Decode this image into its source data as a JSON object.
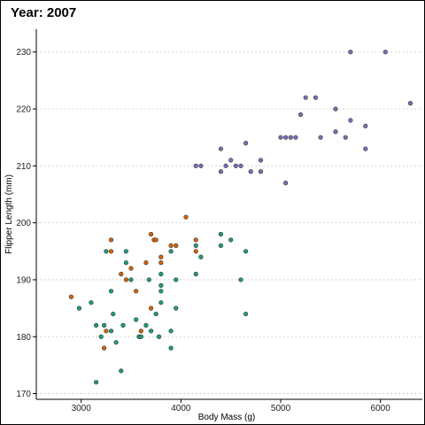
{
  "chart_data": {
    "type": "scatter",
    "title": "Year: 2007",
    "xlabel": "Body Mass (g)",
    "ylabel": "Flipper Length (mm)",
    "xlim": [
      2550,
      6420
    ],
    "ylim": [
      169,
      234
    ],
    "xticks": [
      3000,
      4000,
      5000,
      6000
    ],
    "yticks": [
      170,
      180,
      190,
      200,
      210,
      220,
      230
    ],
    "grid": "horizontal-dotted",
    "legend": "none",
    "series": [
      {
        "color": "#1b9e77",
        "points": [
          [
            2980,
            185
          ],
          [
            3100,
            186
          ],
          [
            3150,
            182
          ],
          [
            3200,
            180
          ],
          [
            3230,
            182
          ],
          [
            3250,
            195
          ],
          [
            3300,
            181
          ],
          [
            3300,
            188
          ],
          [
            3320,
            184
          ],
          [
            3350,
            179
          ],
          [
            3150,
            172
          ],
          [
            3400,
            174
          ],
          [
            3420,
            182
          ],
          [
            3450,
            195
          ],
          [
            3450,
            193
          ],
          [
            3500,
            190
          ],
          [
            3550,
            183
          ],
          [
            3580,
            180
          ],
          [
            3600,
            180
          ],
          [
            3650,
            182
          ],
          [
            3680,
            190
          ],
          [
            3700,
            181
          ],
          [
            3750,
            184
          ],
          [
            3780,
            180
          ],
          [
            3800,
            191
          ],
          [
            3800,
            186
          ],
          [
            3800,
            188
          ],
          [
            3800,
            189
          ],
          [
            3900,
            178
          ],
          [
            3900,
            181
          ],
          [
            3950,
            185
          ],
          [
            3950,
            190
          ],
          [
            3900,
            195
          ],
          [
            4150,
            191
          ],
          [
            4150,
            196
          ],
          [
            4200,
            194
          ],
          [
            4400,
            196
          ],
          [
            4400,
            198
          ],
          [
            4500,
            197
          ],
          [
            4600,
            190
          ],
          [
            4650,
            195
          ],
          [
            4650,
            184
          ]
        ]
      },
      {
        "color": "#d95f02",
        "points": [
          [
            2900,
            187
          ],
          [
            3230,
            178
          ],
          [
            3250,
            181
          ],
          [
            3300,
            195
          ],
          [
            3300,
            197
          ],
          [
            3400,
            191
          ],
          [
            3450,
            190
          ],
          [
            3500,
            192
          ],
          [
            3550,
            188
          ],
          [
            3600,
            181
          ],
          [
            3650,
            193
          ],
          [
            3700,
            198
          ],
          [
            3730,
            197
          ],
          [
            3750,
            197
          ],
          [
            3800,
            193
          ],
          [
            3800,
            194
          ],
          [
            3700,
            185
          ],
          [
            3900,
            196
          ],
          [
            3950,
            196
          ],
          [
            4050,
            201
          ],
          [
            4150,
            195
          ],
          [
            4150,
            197
          ]
        ]
      },
      {
        "color": "#7570b3",
        "points": [
          [
            4150,
            210
          ],
          [
            4200,
            210
          ],
          [
            4400,
            209
          ],
          [
            4400,
            213
          ],
          [
            4450,
            210
          ],
          [
            4500,
            211
          ],
          [
            4550,
            210
          ],
          [
            4600,
            210
          ],
          [
            4650,
            214
          ],
          [
            4700,
            209
          ],
          [
            4800,
            211
          ],
          [
            4800,
            209
          ],
          [
            5000,
            215
          ],
          [
            5050,
            215
          ],
          [
            5050,
            207
          ],
          [
            5100,
            215
          ],
          [
            5150,
            215
          ],
          [
            5200,
            219
          ],
          [
            5250,
            222
          ],
          [
            5350,
            222
          ],
          [
            5400,
            215
          ],
          [
            5550,
            220
          ],
          [
            5550,
            216
          ],
          [
            5650,
            215
          ],
          [
            5700,
            218
          ],
          [
            5700,
            230
          ],
          [
            5850,
            217
          ],
          [
            5850,
            213
          ],
          [
            6050,
            230
          ],
          [
            6300,
            221
          ]
        ]
      }
    ]
  }
}
